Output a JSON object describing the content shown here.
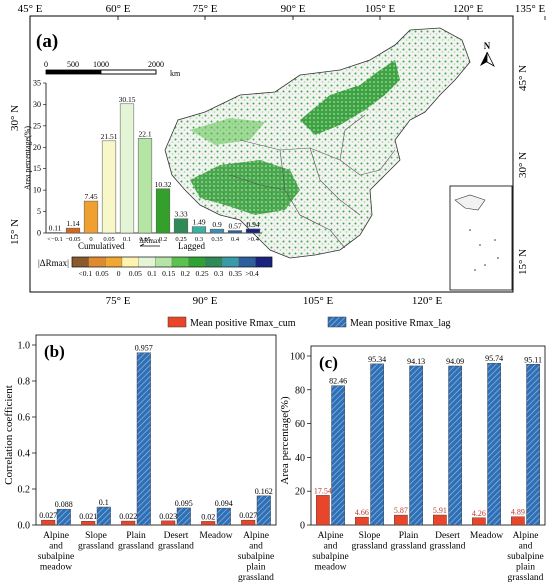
{
  "colors": {
    "cum": "#e8452a",
    "lag": "#2f6fb5",
    "frame": "#000000",
    "grass_dark": "#1f8f2a",
    "grass_light": "#8fd48a",
    "land": "#f2f2f2"
  },
  "map_panel": {
    "label": "(a)",
    "north_label": "N",
    "top_lon_labels": [
      "45° E",
      "60° E",
      "75° E",
      "90° E",
      "105° E",
      "120° E",
      "135° E"
    ],
    "bottom_lon_labels": [
      "75° E",
      "90° E",
      "105° E",
      "120° E"
    ],
    "left_lat_labels": [
      "30° N",
      "15° N"
    ],
    "right_lat_labels": [
      "45° N",
      "30° N",
      "15° N"
    ],
    "inset_lat_label": "15° N",
    "scale_ticks": [
      "0",
      "500",
      "1000",
      "2000"
    ],
    "scale_unit": "km",
    "legend": {
      "title": "|ΔRmax|",
      "cumulatived_label": "Cumulatived",
      "lagged_label": "Lagged",
      "arrow_label": "ΔRmax",
      "class_labels": [
        "<0.1",
        "0.05",
        "0",
        "0.05",
        "0.1",
        "0.15",
        "0.2",
        "0.25",
        "0.3",
        "0.35",
        ">0.4"
      ],
      "colors": [
        "#8b5a2b",
        "#e08a2e",
        "#f0a830",
        "#fff3b0",
        "#e3f5d6",
        "#b5e5a4",
        "#5cc24f",
        "#2fa234",
        "#2e8b57",
        "#3a9aa8",
        "#2d5f9e",
        "#1a237e"
      ]
    }
  },
  "chart_data": [
    {
      "type": "bar",
      "panel": "inset-histogram",
      "ylabel": "Area percentage(%)",
      "ylim": [
        0,
        35
      ],
      "yticks": [
        0,
        5,
        10,
        15,
        20,
        25,
        30,
        35
      ],
      "categories": [
        "<−0.1",
        "−0.05",
        "0",
        "0.05",
        "0.1",
        "0.15",
        "0.2",
        "0.25",
        "0.3",
        "0.35",
        "0.4",
        ">0.4"
      ],
      "values": [
        0.11,
        1.14,
        7.45,
        21.51,
        30.15,
        22.1,
        10.32,
        3.33,
        1.49,
        0.9,
        0.57,
        0.94
      ],
      "value_labels": [
        "0.11",
        "1.14",
        "7.45",
        "21.51",
        "30.15",
        "22.1",
        "10.32",
        "3.33",
        "1.49",
        "0.9",
        "0.57",
        "0.94"
      ],
      "colors": [
        "#8b5a2b",
        "#d2691e",
        "#f0a030",
        "#f7f7c8",
        "#e3f5d6",
        "#b5e5a4",
        "#33a02c",
        "#2e8b57",
        "#3ab0a0",
        "#3a8fb7",
        "#2d5f9e",
        "#1a237e"
      ]
    },
    {
      "type": "bar",
      "panel": "(b)",
      "ylabel": "Correlation coefficient",
      "ylim": [
        0,
        1.0
      ],
      "yticks": [
        "0.0",
        "0.2",
        "0.4",
        "0.6",
        "0.8",
        "1.0"
      ],
      "categories": [
        [
          "Alpine",
          "and",
          "subalpine",
          "meadow"
        ],
        [
          "Slope",
          "grassland"
        ],
        [
          "Plain",
          "grassland"
        ],
        [
          "Desert",
          "grassland"
        ],
        [
          "Meadow"
        ],
        [
          "Alpine",
          "and",
          "subalpine",
          "plain",
          "grassland"
        ]
      ],
      "series": [
        {
          "name": "Mean positive Rmax_cum",
          "values": [
            0.027,
            0.021,
            0.022,
            0.023,
            0.02,
            0.027
          ],
          "labels": [
            "0.027",
            "0.021",
            "0.022",
            "0.023",
            "0.02",
            "0.027"
          ]
        },
        {
          "name": "Mean positive Rmax_lag",
          "values": [
            0.088,
            0.1,
            0.957,
            0.095,
            0.094,
            0.162
          ],
          "labels": [
            "0.088",
            "0.1",
            "0.957",
            "0.095",
            "0.094",
            "0.162"
          ]
        }
      ]
    },
    {
      "type": "bar",
      "panel": "(c)",
      "ylabel": "Area percentage(%)",
      "ylim": [
        0,
        100
      ],
      "yticks": [
        "0",
        "20",
        "40",
        "60",
        "80",
        "100"
      ],
      "categories": [
        [
          "Alpine",
          "and",
          "subalpine",
          "meadow"
        ],
        [
          "Slope",
          "grassland"
        ],
        [
          "Plain",
          "grassland"
        ],
        [
          "Desert",
          "grassland"
        ],
        [
          "Meadow"
        ],
        [
          "Alpine",
          "and",
          "subalpine",
          "plain",
          "grassland"
        ]
      ],
      "series": [
        {
          "name": "Mean positive Rmax_cum",
          "values": [
            17.54,
            4.66,
            5.87,
            5.91,
            4.26,
            4.89
          ],
          "labels": [
            "17.54",
            "4.66",
            "5.87",
            "5.91",
            "4.26",
            "4.89"
          ]
        },
        {
          "name": "Mean positive Rmax_lag",
          "values": [
            82.46,
            95.34,
            94.13,
            94.09,
            95.74,
            95.11
          ],
          "labels": [
            "82.46",
            "95.34",
            "94.13",
            "94.09",
            "95.74",
            "95.11"
          ]
        }
      ]
    }
  ],
  "legend_bottom": {
    "items": [
      "Mean positive Rmax_cum",
      "Mean positive Rmax_lag"
    ]
  },
  "panel_labels": {
    "b": "(b)",
    "c": "(c)"
  }
}
